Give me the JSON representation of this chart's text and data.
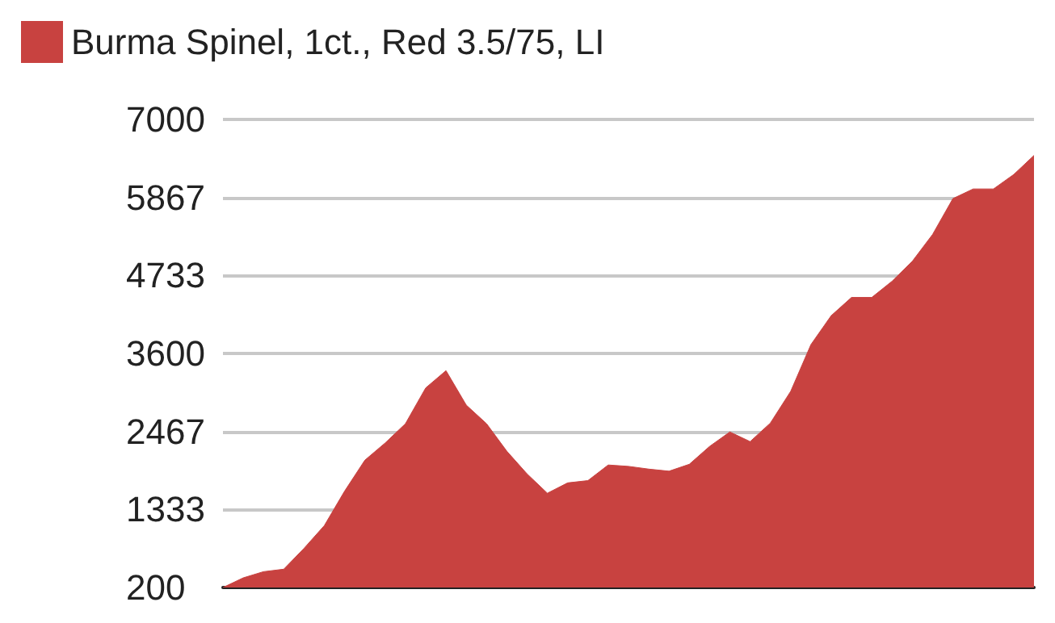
{
  "chart_data": {
    "type": "area",
    "categories": [
      null,
      null,
      null,
      null,
      null,
      null,
      null,
      null,
      null,
      null,
      null,
      null,
      null,
      null,
      null,
      null,
      null,
      null,
      null,
      null,
      null,
      null,
      null,
      null,
      null,
      null,
      null,
      null,
      null,
      null,
      null,
      null,
      null,
      null,
      null,
      null,
      null,
      null,
      null,
      null,
      null
    ],
    "series": [
      {
        "name": "Burma Spinel, 1ct., Red 3.5/75, LI",
        "color": "#c84240",
        "values": [
          200,
          340,
          430,
          466,
          770,
          1100,
          1600,
          2050,
          2300,
          2580,
          3100,
          3350,
          2850,
          2580,
          2180,
          1850,
          1570,
          1720,
          1753,
          1980,
          1960,
          1920,
          1890,
          1990,
          2250,
          2460,
          2320,
          2590,
          3050,
          3730,
          4150,
          4414,
          4414,
          4650,
          4940,
          5330,
          5850,
          5990,
          5990,
          6200,
          6477
        ]
      }
    ],
    "ylim": [
      200,
      7000
    ],
    "yticks": [
      200,
      1333,
      2467,
      3600,
      4733,
      5867,
      7000
    ],
    "grid": "y",
    "legend": "top left",
    "tick_labels": "y",
    "marker": "none"
  }
}
